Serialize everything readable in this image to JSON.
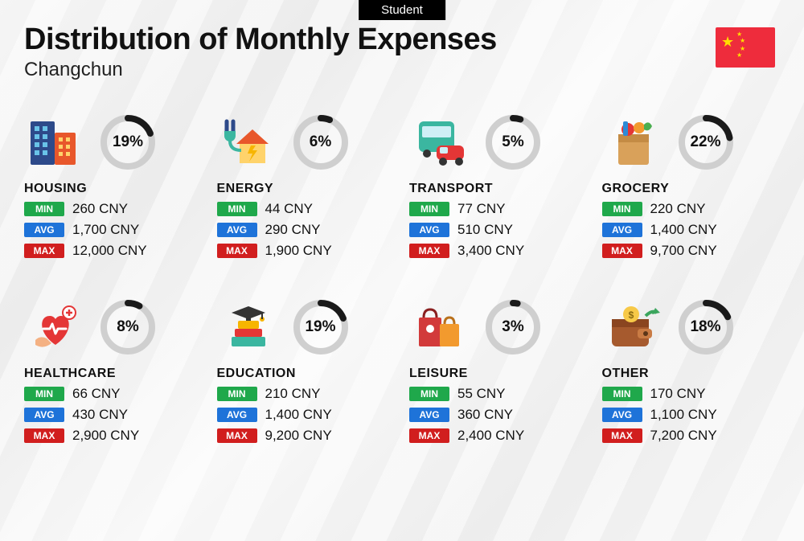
{
  "badge": "Student",
  "title": "Distribution of Monthly Expenses",
  "city": "Changchun",
  "flag": {
    "bg": "#EE2C3C",
    "star": "#FFDE00"
  },
  "ring": {
    "track_color": "#cfcfcf",
    "progress_color": "#1a1a1a",
    "stroke_width": 8,
    "radius": 30
  },
  "stat_labels": {
    "min": "MIN",
    "avg": "AVG",
    "max": "MAX"
  },
  "stat_colors": {
    "min": "#1FA84B",
    "avg": "#1E73D9",
    "max": "#D11E1E"
  },
  "currency": "CNY",
  "categories": [
    {
      "key": "housing",
      "name": "HOUSING",
      "percent": 19,
      "min": "260",
      "avg": "1,700",
      "max": "12,000",
      "icon": "buildings-icon"
    },
    {
      "key": "energy",
      "name": "ENERGY",
      "percent": 6,
      "min": "44",
      "avg": "290",
      "max": "1,900",
      "icon": "energy-house-icon"
    },
    {
      "key": "transport",
      "name": "TRANSPORT",
      "percent": 5,
      "min": "77",
      "avg": "510",
      "max": "3,400",
      "icon": "bus-car-icon"
    },
    {
      "key": "grocery",
      "name": "GROCERY",
      "percent": 22,
      "min": "220",
      "avg": "1,400",
      "max": "9,700",
      "icon": "grocery-bag-icon"
    },
    {
      "key": "healthcare",
      "name": "HEALTHCARE",
      "percent": 8,
      "min": "66",
      "avg": "430",
      "max": "2,900",
      "icon": "heart-care-icon"
    },
    {
      "key": "education",
      "name": "EDUCATION",
      "percent": 19,
      "min": "210",
      "avg": "1,400",
      "max": "9,200",
      "icon": "graduation-books-icon"
    },
    {
      "key": "leisure",
      "name": "LEISURE",
      "percent": 3,
      "min": "55",
      "avg": "360",
      "max": "2,400",
      "icon": "shopping-bags-icon"
    },
    {
      "key": "other",
      "name": "OTHER",
      "percent": 18,
      "min": "170",
      "avg": "1,100",
      "max": "7,200",
      "icon": "wallet-arrow-icon"
    }
  ]
}
